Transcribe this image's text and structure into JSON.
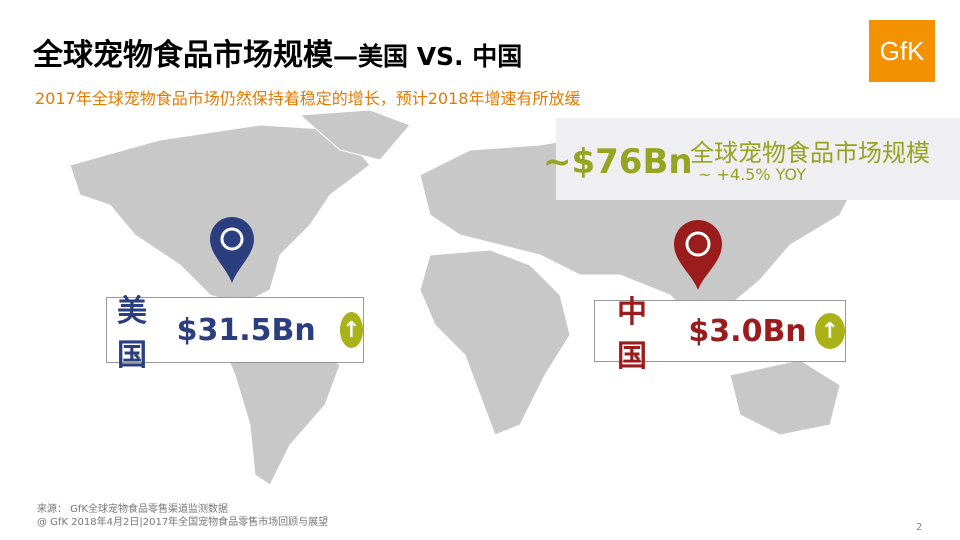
{
  "title": {
    "main": "全球宠物食品市场规模",
    "suffix": "—美国 VS. 中国"
  },
  "subtitle": "2017年全球宠物食品市场仍然保持着稳定的增长，预计2018年增速有所放缓",
  "logo": "GfK",
  "global": {
    "value": "~$76Bn",
    "label": "全球宠物食品市场规模",
    "yoy": "~ +4.5% YOY"
  },
  "us": {
    "label": "美国",
    "value": "$31.5Bn",
    "trend": "up",
    "pin_color": "#2b3e7e"
  },
  "china": {
    "label": "中国",
    "value": "$3.0Bn",
    "trend": "up",
    "pin_color": "#9b1c1c"
  },
  "colors": {
    "accent_green": "#95a421",
    "orange": "#f39200",
    "map_grey": "#c8c8c8"
  },
  "footer": {
    "source": "来源： GfK全球宠物食品零售渠道监测数据",
    "copyright": "@ GfK 2018年4月2日|2017年全国宠物食品零售市场回顾与展望"
  },
  "page_number": "2"
}
